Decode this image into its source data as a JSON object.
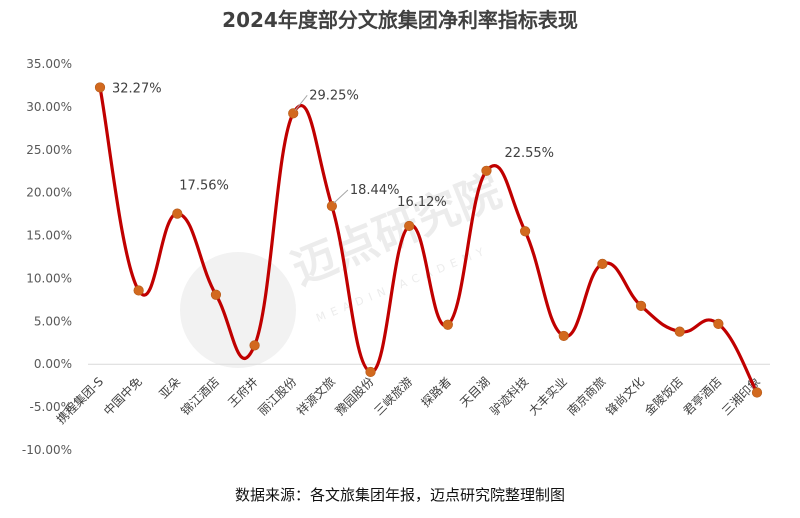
{
  "chart_data": {
    "type": "line",
    "title": "2024年度部分文旅集团净利率指标表现",
    "categories": [
      "携程集团-S",
      "中国中免",
      "亚朵",
      "锦江酒店",
      "王府井",
      "丽江股份",
      "祥源文旅",
      "豫园股份",
      "三峡旅游",
      "探路者",
      "天目湖",
      "驴迹科技",
      "大丰实业",
      "南京商旅",
      "锋尚文化",
      "金陵饭店",
      "君亭酒店",
      "三湘印象"
    ],
    "values": [
      32.27,
      8.6,
      17.56,
      8.1,
      2.2,
      29.25,
      18.44,
      -0.9,
      16.12,
      4.6,
      22.55,
      15.5,
      3.3,
      11.7,
      6.8,
      3.8,
      4.7,
      -3.3
    ],
    "data_labels": [
      {
        "index": 0,
        "text": "32.27%"
      },
      {
        "index": 2,
        "text": "17.56%"
      },
      {
        "index": 5,
        "text": "29.25%"
      },
      {
        "index": 6,
        "text": "18.44%"
      },
      {
        "index": 8,
        "text": "16.12%"
      },
      {
        "index": 10,
        "text": "22.55%"
      }
    ],
    "ylim": [
      -10,
      35
    ],
    "yticks": [
      "35.00%",
      "30.00%",
      "25.00%",
      "20.00%",
      "15.00%",
      "10.00%",
      "5.00%",
      "0.00%",
      "-5.00%",
      "-10.00%"
    ],
    "ytick_values": [
      35,
      30,
      25,
      20,
      15,
      10,
      5,
      0,
      -5,
      -10
    ],
    "grid": false,
    "smooth": true,
    "line_color": "#C00000",
    "marker_color": "#D2691E"
  },
  "watermark": {
    "text": "迈点研究院",
    "sub": "MEADIN ACADEMY"
  },
  "source": "数据来源：各文旅集团年报，迈点研究院整理制图"
}
